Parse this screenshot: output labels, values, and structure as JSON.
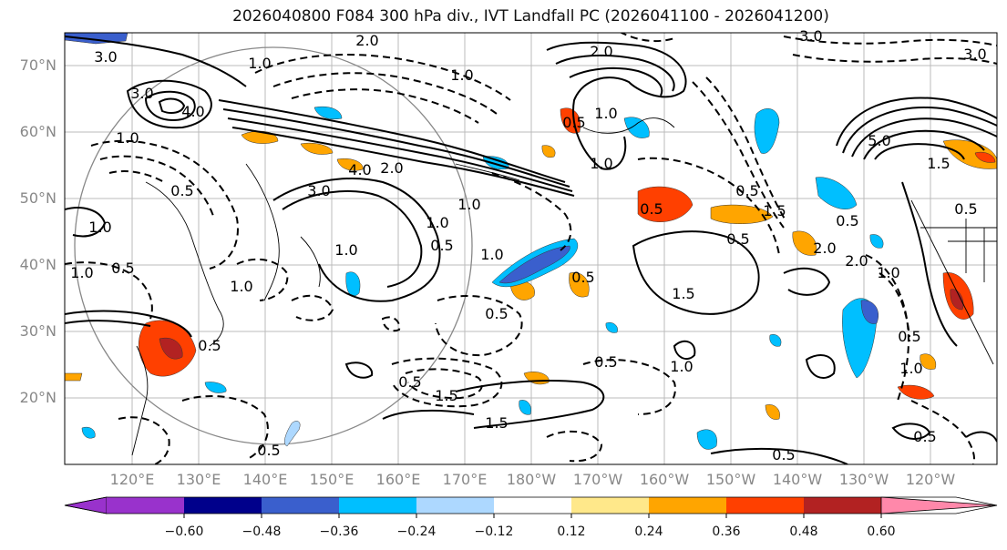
{
  "title": "2026040800 F084 300 hPa div., IVT Landfall PC (2026041100 - 2026041200)",
  "lat_labels": [
    "70°N",
    "60°N",
    "50°N",
    "40°N",
    "30°N",
    "20°N"
  ],
  "lon_labels": [
    "120°E",
    "130°E",
    "140°E",
    "150°E",
    "160°E",
    "170°E",
    "180°W",
    "170°W",
    "160°W",
    "150°W",
    "140°W",
    "130°W",
    "120°W"
  ],
  "colorbar": {
    "ticks": [
      "−0.60",
      "−0.48",
      "−0.36",
      "−0.24",
      "−0.12",
      "0.12",
      "0.24",
      "0.36",
      "0.48",
      "0.60"
    ],
    "colors": [
      "#9932CC",
      "#00008B",
      "#3A5FCD",
      "#00BFFF",
      "#ADD8FF",
      "#FFFFFF",
      "#FFE88A",
      "#FFA500",
      "#FF4000",
      "#B22222",
      "#FF88AA"
    ]
  },
  "contour_labels": [
    "2.0",
    "3.0",
    "1.0",
    "3.0",
    "4.0",
    "1.0",
    "1.0",
    "4.0",
    "2.0",
    "3.0",
    "2.0",
    "1.0",
    "0.5",
    "1.0",
    "1.0",
    "1.5",
    "0.5",
    "1.0",
    "0.5",
    "1.0",
    "0.5",
    "0.5",
    "1.5",
    "2.0",
    "0.5",
    "1.0",
    "0.5",
    "1.0",
    "0.5",
    "1.5",
    "0.5",
    "0.5",
    "5.0",
    "3.0",
    "1.5",
    "1.0",
    "0.5",
    "0.5",
    "1.5",
    "0.5",
    "1.0",
    "0.5",
    "0.5",
    "1.0",
    "1.0",
    "0.5",
    "0.5",
    "1.0",
    "0.5",
    "3.0",
    "2.0"
  ]
}
